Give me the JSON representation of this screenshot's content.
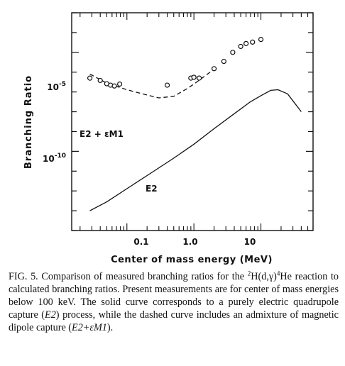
{
  "chart_data": {
    "type": "line",
    "xlabel": "Center of mass energy (MeV)",
    "ylabel": "Branching Ratio",
    "x_scale": "log",
    "y_scale": "log",
    "xlim": [
      0.015,
      60
    ],
    "ylim": [
      1e-14,
      0.001
    ],
    "x_tick_labels": [
      {
        "value": 0.1,
        "label": "0.1"
      },
      {
        "value": 1,
        "label": "1.0"
      },
      {
        "value": 10,
        "label": "10"
      }
    ],
    "y_tick_labels": [
      {
        "value": 1e-05,
        "base": "10",
        "exp": "-5"
      },
      {
        "value": 1e-10,
        "base": "10",
        "exp": "-10"
      }
    ],
    "series": [
      {
        "name": "E2",
        "style": "solid",
        "x": [
          0.028,
          0.05,
          0.1,
          0.2,
          0.5,
          1.0,
          2.0,
          4.0,
          7.0,
          10,
          14,
          18,
          25,
          40
        ],
        "y": [
          1e-13,
          2.8e-13,
          1.3e-12,
          6e-12,
          4.5e-11,
          2.3e-10,
          1.4e-09,
          8e-09,
          3.2e-08,
          6.5e-08,
          1.2e-07,
          1.3e-07,
          8e-08,
          1e-08
        ]
      },
      {
        "name": "E2 + εM1",
        "style": "dashed",
        "x": [
          0.028,
          0.05,
          0.1,
          0.2,
          0.3,
          0.5,
          0.8,
          1.0,
          2.0
        ],
        "y": [
          8e-07,
          2.8e-07,
          1.3e-07,
          7e-08,
          5e-08,
          6e-08,
          1.5e-07,
          2.5e-07,
          1.4e-06
        ]
      },
      {
        "name": "measured",
        "style": "markers",
        "x": [
          0.028,
          0.04,
          0.05,
          0.057,
          0.065,
          0.078,
          0.4,
          0.9,
          1.0,
          1.2,
          2.0,
          2.8,
          3.8,
          5.0,
          6.0,
          7.5,
          10
        ],
        "y": [
          5e-07,
          3.8e-07,
          2.6e-07,
          2.2e-07,
          2e-07,
          2.5e-07,
          2.2e-07,
          5e-07,
          5.5e-07,
          5e-07,
          1.5e-06,
          3.5e-06,
          1e-05,
          2e-05,
          2.8e-05,
          3.3e-05,
          4.5e-05
        ]
      }
    ],
    "annotations": [
      {
        "text": "E2 + εM1",
        "x": 0.05,
        "y": 3e-08
      },
      {
        "text": "E2",
        "x": 0.45,
        "y": 2e-12
      }
    ],
    "grid": false,
    "legend": "none"
  },
  "caption": {
    "lead": "FIG. 5.",
    "text1": " Comparison of measured branching ratios for the ",
    "sup_iso1": "2",
    "react": "H(d,γ)",
    "sup_iso2": "4",
    "text2": "He reaction to calculated branching ratios. Present measurements are for center of mass energies below 100 keV. The solid curve corresponds to a purely electric quadrupole capture (",
    "e2": "E2",
    "text3": ") process, while the dashed curve includes an admixture of magnetic dipole capture (",
    "e2m1": "E2+εM1",
    "text4": ")."
  }
}
